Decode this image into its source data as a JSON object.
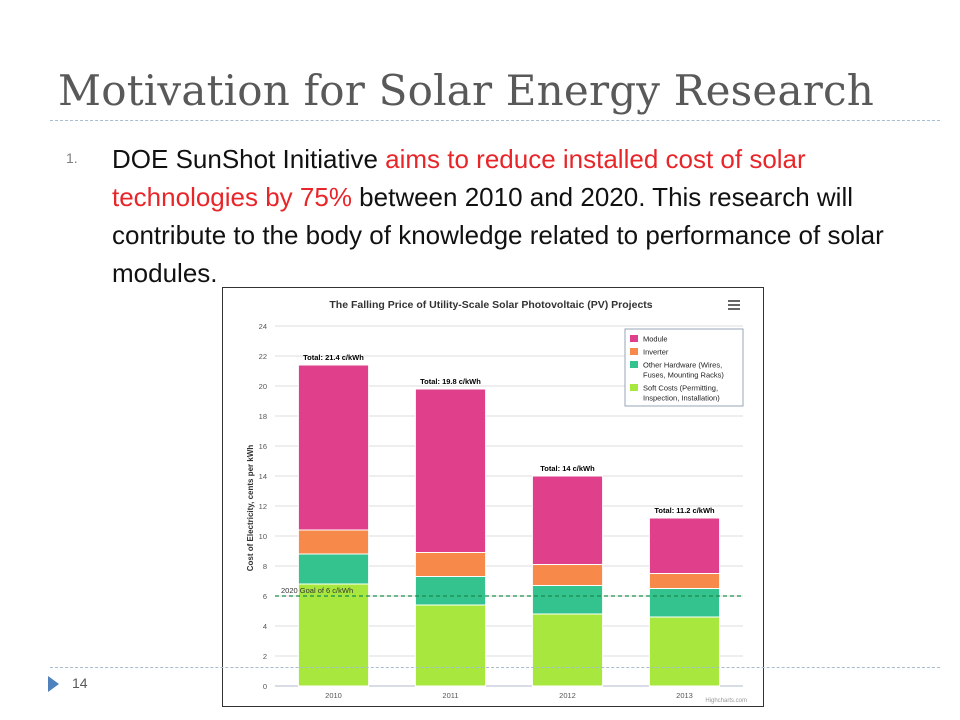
{
  "slide": {
    "title": "Motivation for Solar Energy Research",
    "bullet_number": "1.",
    "bullet_parts": {
      "p1": "DOE SunShot Initiative ",
      "p2": "aims to reduce installed cost of solar technologies by 75%",
      "p3": " between 2010 and 2020.  This research will contribute to the body of knowledge related to performance of solar modules."
    },
    "page_number": "14"
  },
  "colors": {
    "module": "#e0408b",
    "inverter": "#f7894a",
    "other_hardware": "#34c38f",
    "soft_costs": "#a8e83e",
    "goal_line": "#1a8a4a",
    "highlight": "#e8262a"
  },
  "chart_data": {
    "type": "bar",
    "stacked": true,
    "title": "The Falling Price of Utility-Scale Solar Photovoltaic (PV) Projects",
    "xlabel": "",
    "ylabel": "Cost of Electricity, cents per kWh",
    "categories": [
      "2010",
      "2011",
      "2012",
      "2013"
    ],
    "ylim": [
      0,
      24
    ],
    "yticks": [
      0,
      2,
      4,
      6,
      8,
      10,
      12,
      14,
      16,
      18,
      20,
      22,
      24
    ],
    "grid": true,
    "legend_position": "top-right",
    "series": [
      {
        "name": "Soft Costs (Permitting, Inspection, Installation)",
        "legend_lines": [
          "Soft Costs (Permitting,",
          "Inspection, Installation)"
        ],
        "color": "#a8e83e",
        "values": [
          6.8,
          5.4,
          4.8,
          4.6
        ]
      },
      {
        "name": "Other Hardware (Wires, Fuses, Mounting Racks)",
        "legend_lines": [
          "Other Hardware (Wires,",
          "Fuses, Mounting Racks)"
        ],
        "color": "#34c38f",
        "values": [
          2.0,
          1.9,
          1.9,
          1.9
        ]
      },
      {
        "name": "Inverter",
        "legend_lines": [
          "Inverter"
        ],
        "color": "#f7894a",
        "values": [
          1.6,
          1.6,
          1.4,
          1.0
        ]
      },
      {
        "name": "Module",
        "legend_lines": [
          "Module"
        ],
        "color": "#e0408b",
        "values": [
          11.0,
          10.9,
          5.9,
          3.7
        ]
      }
    ],
    "legend_order": [
      3,
      2,
      1,
      0
    ],
    "totals": [
      21.4,
      19.8,
      14,
      11.2
    ],
    "total_labels": [
      "Total: 21.4 c/kWh",
      "Total: 19.8 c/kWh",
      "Total: 14 c/kWh",
      "Total: 11.2 c/kWh"
    ],
    "goal_line": {
      "value": 6,
      "label": "2020 Goal of 6 c/kWh"
    },
    "credit": "Highcharts.com"
  }
}
